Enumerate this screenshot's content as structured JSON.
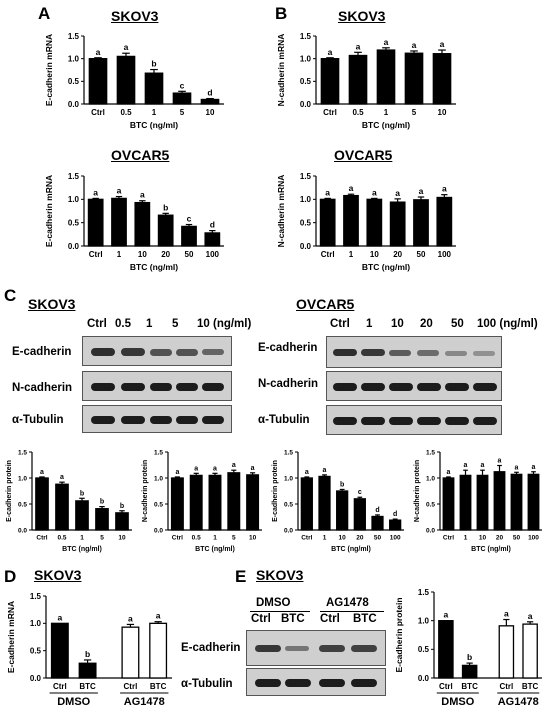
{
  "panels": {
    "A": "A",
    "B": "B",
    "C": "C",
    "D": "D",
    "E": "E"
  },
  "titles": {
    "skov3": "SKOV3",
    "ovcar5": "OVCAR5"
  },
  "blots": {
    "skov3_lanes": [
      "Ctrl",
      "0.5",
      "1",
      "5",
      "10 (ng/ml)"
    ],
    "ovcar5_lanes": [
      "Ctrl",
      "1",
      "10",
      "20",
      "50",
      "100 (ng/ml)"
    ],
    "rows": [
      "E-cadherin",
      "N-cadherin",
      "α-Tubulin"
    ],
    "e_groups": [
      "DMSO",
      "AG1478"
    ],
    "e_lanes": [
      "Ctrl",
      "BTC",
      "Ctrl",
      "BTC"
    ],
    "e_rows": [
      "E-cadherin",
      "α-Tubulin"
    ]
  },
  "chart_data": [
    {
      "id": "A1",
      "type": "bar",
      "categories": [
        "Ctrl",
        "0.5",
        "1",
        "5",
        "10"
      ],
      "values": [
        1.0,
        1.05,
        0.68,
        0.24,
        0.1
      ],
      "errors": [
        0.02,
        0.07,
        0.08,
        0.04,
        0.02
      ],
      "letters": [
        "a",
        "a",
        "b",
        "c",
        "d"
      ],
      "xlabel": "BTC (ng/ml)",
      "ylabel": "E-cadherin mRNA",
      "ylim": [
        0,
        1.5
      ],
      "yticks": [
        "0.0",
        "0.5",
        "1.0",
        "1.5"
      ],
      "fills": [
        "black",
        "black",
        "black",
        "black",
        "black"
      ]
    },
    {
      "id": "B1",
      "type": "bar",
      "categories": [
        "Ctrl",
        "0.5",
        "1",
        "5",
        "10"
      ],
      "values": [
        1.0,
        1.07,
        1.19,
        1.12,
        1.11
      ],
      "errors": [
        0.02,
        0.07,
        0.05,
        0.05,
        0.08
      ],
      "letters": [
        "a",
        "a",
        "a",
        "a",
        "a"
      ],
      "xlabel": "BTC (ng/ml)",
      "ylabel": "N-cadherin mRNA",
      "ylim": [
        0,
        1.5
      ],
      "yticks": [
        "0.0",
        "0.5",
        "1.0",
        "1.5"
      ],
      "fills": [
        "black",
        "black",
        "black",
        "black",
        "black"
      ]
    },
    {
      "id": "A2",
      "type": "bar",
      "categories": [
        "Ctrl",
        "1",
        "10",
        "20",
        "50",
        "100"
      ],
      "values": [
        1.0,
        1.02,
        0.93,
        0.66,
        0.42,
        0.28
      ],
      "errors": [
        0.02,
        0.04,
        0.04,
        0.04,
        0.04,
        0.05
      ],
      "letters": [
        "a",
        "a",
        "a",
        "b",
        "c",
        "d"
      ],
      "xlabel": "BTC (ng/ml)",
      "ylabel": "E-cadherin mRNA",
      "ylim": [
        0,
        1.5
      ],
      "yticks": [
        "0.0",
        "0.5",
        "1.0",
        "1.5"
      ],
      "fills": [
        "black",
        "black",
        "black",
        "black",
        "black",
        "black"
      ]
    },
    {
      "id": "B2",
      "type": "bar",
      "categories": [
        "Ctrl",
        "1",
        "10",
        "20",
        "50",
        "100"
      ],
      "values": [
        1.0,
        1.08,
        1.0,
        0.94,
        0.99,
        1.04
      ],
      "errors": [
        0.02,
        0.03,
        0.02,
        0.07,
        0.06,
        0.06
      ],
      "letters": [
        "a",
        "a",
        "a",
        "a",
        "a",
        "a"
      ],
      "xlabel": "BTC (ng/ml)",
      "ylabel": "N-cadherin mRNA",
      "ylim": [
        0,
        1.5
      ],
      "yticks": [
        "0.0",
        "0.5",
        "1.0",
        "1.5"
      ],
      "fills": [
        "black",
        "black",
        "black",
        "black",
        "black",
        "black"
      ]
    },
    {
      "id": "C1",
      "type": "bar",
      "categories": [
        "Ctrl",
        "0.5",
        "1",
        "5",
        "10"
      ],
      "values": [
        1.0,
        0.88,
        0.56,
        0.41,
        0.33
      ],
      "errors": [
        0.02,
        0.04,
        0.05,
        0.04,
        0.04
      ],
      "letters": [
        "a",
        "a",
        "b",
        "b",
        "b"
      ],
      "xlabel": "BTC (ng/ml)",
      "ylabel": "E-cadherin protein",
      "ylim": [
        0,
        1.5
      ],
      "yticks": [
        "0.0",
        "0.5",
        "1.0",
        "1.5"
      ],
      "fills": [
        "black",
        "black",
        "black",
        "black",
        "black"
      ]
    },
    {
      "id": "C2",
      "type": "bar",
      "categories": [
        "Ctrl",
        "0.5",
        "1",
        "5",
        "10"
      ],
      "values": [
        1.0,
        1.05,
        1.05,
        1.1,
        1.06
      ],
      "errors": [
        0.02,
        0.04,
        0.04,
        0.05,
        0.04
      ],
      "letters": [
        "a",
        "a",
        "a",
        "a",
        "a"
      ],
      "xlabel": "BTC (ng/ml)",
      "ylabel": "N-cadherin protein",
      "ylim": [
        0,
        1.5
      ],
      "yticks": [
        "0.0",
        "0.5",
        "1.0",
        "1.5"
      ],
      "fills": [
        "black",
        "black",
        "black",
        "black",
        "black"
      ]
    },
    {
      "id": "C3",
      "type": "bar",
      "categories": [
        "Ctrl",
        "1",
        "10",
        "20",
        "50",
        "100"
      ],
      "values": [
        1.0,
        1.03,
        0.75,
        0.6,
        0.26,
        0.19
      ],
      "errors": [
        0.02,
        0.03,
        0.03,
        0.03,
        0.03,
        0.02
      ],
      "letters": [
        "a",
        "a",
        "b",
        "c",
        "d",
        "d"
      ],
      "xlabel": "BTC (ng/ml)",
      "ylabel": "E-cadherin protein",
      "ylim": [
        0,
        1.5
      ],
      "yticks": [
        "0.0",
        "0.5",
        "1.0",
        "1.5"
      ],
      "fills": [
        "black",
        "black",
        "black",
        "black",
        "black",
        "black"
      ]
    },
    {
      "id": "C4",
      "type": "bar",
      "categories": [
        "Ctrl",
        "1",
        "10",
        "20",
        "50",
        "100"
      ],
      "values": [
        1.0,
        1.05,
        1.05,
        1.12,
        1.07,
        1.07
      ],
      "errors": [
        0.02,
        0.1,
        0.1,
        0.12,
        0.04,
        0.05
      ],
      "letters": [
        "a",
        "a",
        "a",
        "a",
        "a",
        "a"
      ],
      "xlabel": "BTC (ng/ml)",
      "ylabel": "N-cadherin protein",
      "ylim": [
        0,
        1.5
      ],
      "yticks": [
        "0.0",
        "0.5",
        "1.0",
        "1.5"
      ],
      "fills": [
        "black",
        "black",
        "black",
        "black",
        "black",
        "black"
      ]
    },
    {
      "id": "D",
      "type": "bar",
      "categories": [
        "Ctrl",
        "BTC",
        "Ctrl",
        "BTC"
      ],
      "values": [
        1.0,
        0.27,
        0.93,
        1.0
      ],
      "errors": [
        0.0,
        0.06,
        0.05,
        0.03
      ],
      "letters": [
        "a",
        "b",
        "a",
        "a"
      ],
      "groups": [
        "DMSO",
        "AG1478"
      ],
      "xlabel": "",
      "ylabel": "E-cadherin mRNA",
      "ylim": [
        0,
        1.5
      ],
      "yticks": [
        "0.0",
        "0.5",
        "1.0",
        "1.5"
      ],
      "fills": [
        "black",
        "black",
        "white",
        "white"
      ]
    },
    {
      "id": "E",
      "type": "bar",
      "categories": [
        "Ctrl",
        "BTC",
        "Ctrl",
        "BTC"
      ],
      "values": [
        1.0,
        0.22,
        0.91,
        0.94
      ],
      "errors": [
        0.0,
        0.04,
        0.11,
        0.04
      ],
      "letters": [
        "a",
        "b",
        "a",
        "a"
      ],
      "groups": [
        "DMSO",
        "AG1478"
      ],
      "xlabel": "",
      "ylabel": "E-cadherin protein",
      "ylim": [
        0,
        1.5
      ],
      "yticks": [
        "0.0",
        "0.5",
        "1.0",
        "1.5"
      ],
      "fills": [
        "black",
        "black",
        "white",
        "white"
      ]
    }
  ]
}
